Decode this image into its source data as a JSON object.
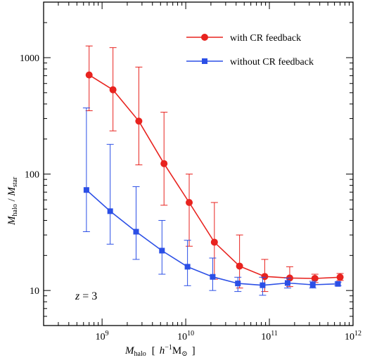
{
  "chart_data": {
    "type": "line",
    "xscale": "log",
    "yscale": "log",
    "xlim": [
      200000000,
      1000000000000
    ],
    "ylim": [
      5,
      3000
    ],
    "x_tick_labels": [
      {
        "value": 1000000000,
        "base": "10",
        "exp": "9"
      },
      {
        "value": 10000000000,
        "base": "10",
        "exp": "10"
      },
      {
        "value": 100000000000,
        "base": "10",
        "exp": "11"
      },
      {
        "value": 1000000000000,
        "base": "10",
        "exp": "12"
      }
    ],
    "y_tick_labels": [
      {
        "value": 10,
        "label": "10"
      },
      {
        "value": 100,
        "label": "100"
      },
      {
        "value": 1000,
        "label": "1000"
      }
    ],
    "xlabel": {
      "main": "M",
      "sub": "halo",
      "bracket_open": "[",
      "h": "h",
      "h_exp": "−1",
      "msun": "M",
      "sun_symbol": "⊙",
      "bracket_close": "]"
    },
    "ylabel": {
      "m1": "M",
      "sub1": "halo",
      "slash": " / ",
      "m2": "M",
      "sub2": "star"
    },
    "annotation": {
      "z": "z",
      "rest": " = 3"
    },
    "grid": false,
    "legend_position": "top-right",
    "series": [
      {
        "name": "with CR feedback",
        "color": "#e8231f",
        "marker": "circle",
        "x": [
          700000000,
          1350000000,
          2750000000,
          5500000000,
          11000000000,
          22000000000,
          44000000000,
          88000000000,
          175000000000,
          350000000000,
          700000000000
        ],
        "y": [
          710,
          530,
          285,
          123,
          57,
          26,
          16.2,
          13.2,
          12.8,
          12.7,
          13.0
        ],
        "err_low": [
          350,
          235,
          120,
          54,
          24,
          12.5,
          10.5,
          9.8,
          10.8,
          11.7,
          12.2
        ],
        "err_high": [
          1260,
          1220,
          830,
          340,
          100,
          57,
          30,
          18.5,
          16.0,
          13.8,
          14.0
        ]
      },
      {
        "name": "without CR feedback",
        "color": "#2b4fe6",
        "marker": "square",
        "x": [
          650000000,
          1250000000,
          2550000000,
          5200000000,
          10500000000,
          21000000000,
          42000000000,
          83000000000,
          165000000000,
          330000000000,
          660000000000
        ],
        "y": [
          73,
          48,
          32,
          22,
          16,
          13.1,
          11.5,
          11.1,
          11.6,
          11.2,
          11.4
        ],
        "err_low": [
          32,
          25,
          18.5,
          13.8,
          11.0,
          10.0,
          9.8,
          9.1,
          10.5,
          10.5,
          11.0
        ],
        "err_high": [
          370,
          180,
          78,
          40,
          27,
          19.0,
          13.0,
          13.0,
          12.8,
          12.0,
          11.8
        ]
      }
    ]
  }
}
